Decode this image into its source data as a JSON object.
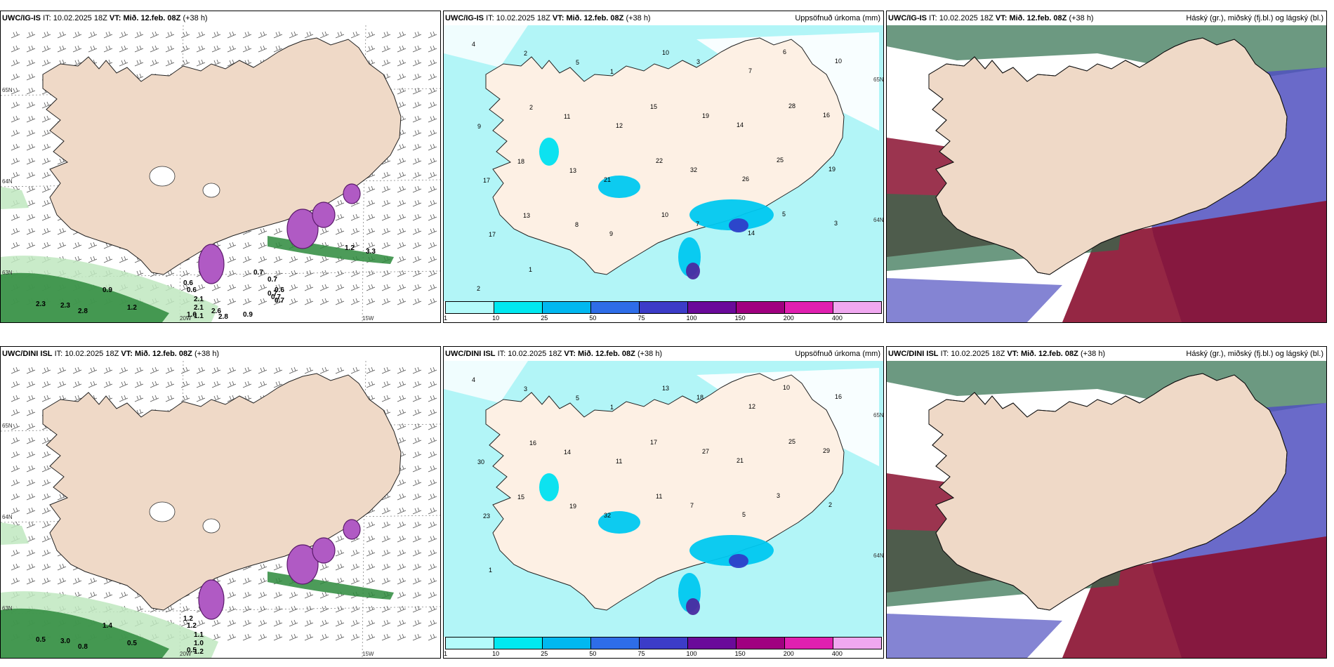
{
  "panels": [
    {
      "id": "p1",
      "model": "UWC/IG-IS",
      "it_label": "IT:",
      "it_value": "10.02.2025 18Z",
      "vt_label": "VT:",
      "vt_value": "Mið. 12.feb. 08Z",
      "lead": "(+38 h)",
      "description": "",
      "type": "wind",
      "axis_labels": [
        "65N",
        "64N",
        "63N",
        "20W",
        "15W"
      ],
      "values": [
        "2.3",
        "2.3",
        "2.8",
        "1.2",
        "0.9",
        "0.6",
        "0.6",
        "2.1",
        "2.1",
        "1.6",
        "1.1",
        "2.6",
        "2.8",
        "0.9",
        "0.7",
        "0.7",
        "0.7",
        "0.6",
        "0.7",
        "0.7",
        "1.2",
        "3.3"
      ]
    },
    {
      "id": "p2",
      "model": "UWC/IG-IS",
      "it_label": "IT:",
      "it_value": "10.02.2025 18Z",
      "vt_label": "VT:",
      "vt_value": "Mið. 12.feb. 08Z",
      "lead": "(+38 h)",
      "description": "Uppsöfnuð úrkoma (mm)",
      "type": "precip",
      "axis_labels": [
        "65N",
        "64N"
      ],
      "values": [
        "4",
        "2",
        "5",
        "1",
        "10",
        "3",
        "7",
        "6",
        "10",
        "9",
        "2",
        "11",
        "12",
        "15",
        "19",
        "14",
        "28",
        "16",
        "17",
        "18",
        "13",
        "21",
        "22",
        "32",
        "26",
        "25",
        "19",
        "17",
        "13",
        "8",
        "9",
        "10",
        "7",
        "14",
        "5",
        "3",
        "2",
        "1"
      ]
    },
    {
      "id": "p3",
      "model": "UWC/IG-IS",
      "it_label": "IT:",
      "it_value": "10.02.2025 18Z",
      "vt_label": "VT:",
      "vt_value": "Mið. 12.feb. 08Z",
      "lead": "(+38 h)",
      "description": "Háský (gr.), miðský (fj.bl.) og lágský (bl.)",
      "type": "cloud"
    },
    {
      "id": "p4",
      "model": "UWC/DINI ISL",
      "it_label": "IT:",
      "it_value": "10.02.2025 18Z",
      "vt_label": "VT:",
      "vt_value": "Mið. 12.feb. 08Z",
      "lead": "(+38 h)",
      "description": "",
      "type": "wind",
      "axis_labels": [
        "65N",
        "64N",
        "63N",
        "20W",
        "15W"
      ],
      "values": [
        "0.5",
        "3.0",
        "0.8",
        "0.5",
        "1.4",
        "1.2",
        "1.2",
        "1.1",
        "1.0",
        "0.5",
        "1.2"
      ]
    },
    {
      "id": "p5",
      "model": "UWC/DINI ISL",
      "it_label": "IT:",
      "it_value": "10.02.2025 18Z",
      "vt_label": "VT:",
      "vt_value": "Mið. 12.feb. 08Z",
      "lead": "(+38 h)",
      "description": "Uppsöfnuð úrkoma (mm)",
      "type": "precip",
      "axis_labels": [
        "65N",
        "64N"
      ],
      "values": [
        "4",
        "3",
        "5",
        "1",
        "13",
        "18",
        "12",
        "10",
        "16",
        "30",
        "16",
        "14",
        "11",
        "17",
        "27",
        "21",
        "25",
        "29",
        "23",
        "15",
        "19",
        "32",
        "11",
        "7",
        "5",
        "3",
        "2",
        "1"
      ]
    },
    {
      "id": "p6",
      "model": "UWC/DINI ISL",
      "it_label": "IT:",
      "it_value": "10.02.2025 18Z",
      "vt_label": "VT:",
      "vt_value": "Mið. 12.feb. 08Z",
      "lead": "(+38 h)",
      "description": "Háský (gr.), miðský (fj.bl.) og lágský (bl.)",
      "type": "cloud"
    }
  ],
  "colorbar": {
    "ticks": [
      "1",
      "10",
      "25",
      "50",
      "75",
      "100",
      "150",
      "200",
      "400"
    ],
    "colors": [
      "#b4fbfb",
      "#00e8f0",
      "#00b8f0",
      "#2e6de8",
      "#3c3cc8",
      "#6a0a9a",
      "#a00080",
      "#e020b0",
      "#f0a8f0"
    ]
  },
  "colors": {
    "land": "#efd9c7",
    "precip_light": "#b2f5f7",
    "wind_green": "#2d8a3c",
    "snow_magenta": "#b05ac4",
    "cloud_high": "#2e6e4c",
    "cloud_mid": "#5050c0",
    "cloud_low": "#8a1030"
  }
}
